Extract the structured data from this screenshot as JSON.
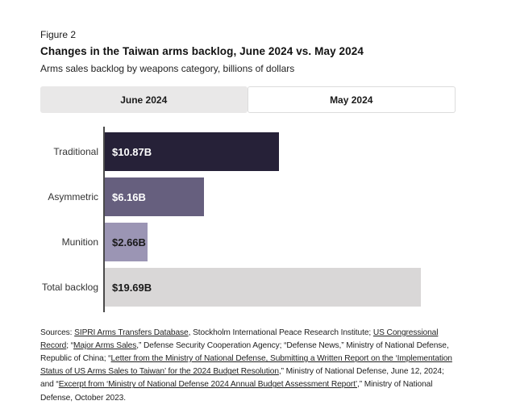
{
  "header": {
    "figure_label": "Figure 2",
    "title": "Changes in the Taiwan arms backlog, June 2024 vs. May 2024",
    "subtitle": "Arms sales backlog by weapons category, billions of dollars"
  },
  "tabs": [
    {
      "label": "June 2024",
      "active": true
    },
    {
      "label": "May 2024",
      "active": false
    }
  ],
  "chart_data": {
    "type": "bar",
    "orientation": "horizontal",
    "title": "Changes in the Taiwan arms backlog, June 2024 vs. May 2024",
    "unit": "billions of dollars",
    "categories": [
      "Traditional",
      "Asymmetric",
      "Munition",
      "Total backlog"
    ],
    "values": [
      10.87,
      6.16,
      2.66,
      19.69
    ],
    "value_labels": [
      "$10.87B",
      "$6.16B",
      "$2.66B",
      "$19.69B"
    ],
    "bar_colors": [
      "#262138",
      "#665f7e",
      "#9b95b4",
      "#d9d7d7"
    ],
    "value_label_colors": [
      "#ffffff",
      "#ffffff",
      "#1a1a1a",
      "#1a1a1a"
    ],
    "xlim": [
      0,
      21.85
    ],
    "grid": false,
    "legend": "none"
  },
  "sources": {
    "segments": [
      {
        "text": "Sources: ",
        "link": false
      },
      {
        "text": "SIPRI Arms Transfers Database",
        "link": true
      },
      {
        "text": ", Stockholm International Peace Research Institute; ",
        "link": false
      },
      {
        "text": "US Congressional Record",
        "link": true
      },
      {
        "text": "; “",
        "link": false
      },
      {
        "text": "Major Arms Sales",
        "link": true
      },
      {
        "text": ",” Defense Security Cooperation Agency; “Defense News,” Ministry of National Defense, Republic of China; “",
        "link": false
      },
      {
        "text": "Letter from the Ministry of National Defense, Submitting a Written Report on the ‘Implementation Status of US Arms Sales to Taiwan’ for the 2024 Budget Resolution",
        "link": true
      },
      {
        "text": ",” Ministry of National Defense, June 12, 2024; and “",
        "link": false
      },
      {
        "text": "Excerpt from ‘Ministry of National Defense 2024 Annual Budget Assessment Report’",
        "link": true
      },
      {
        "text": ",” Ministry of National Defense, October 2023.",
        "link": false
      }
    ]
  },
  "colors": {
    "tab_active_bg": "#e9e8e8",
    "tab_inactive_bg": "#ffffff",
    "tab_border": "#dcdcdc",
    "axis_line": "#4a4a4a"
  }
}
